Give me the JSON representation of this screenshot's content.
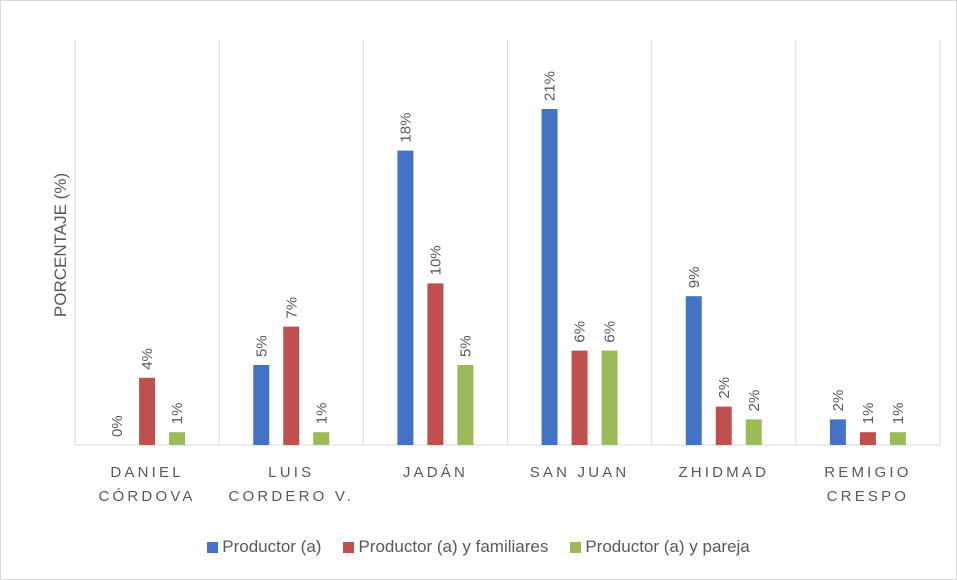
{
  "chart_data": {
    "type": "bar",
    "y_label": "PORCENTAJE (%)",
    "categories": [
      "DANIEL CÓRDOVA",
      "LUIS CORDERO V.",
      "JADÁN",
      "SAN JUAN",
      "ZHIDMAD",
      "REMIGIO CRESPO"
    ],
    "series": [
      {
        "name": "Productor (a)",
        "color": "#4472c4",
        "values": [
          0,
          5.0,
          18.4,
          21.0,
          9.3,
          1.6
        ],
        "value_labels": [
          "0%",
          "5%",
          "18%",
          "21%",
          "9%",
          "2%"
        ]
      },
      {
        "name": "Productor (a) y familiares",
        "color": "#c0504d",
        "values": [
          4.2,
          7.4,
          10.1,
          5.9,
          2.4,
          0.8
        ],
        "value_labels": [
          "4%",
          "7%",
          "10%",
          "6%",
          "2%",
          "1%"
        ]
      },
      {
        "name": "Productor (a) y pareja",
        "color": "#9bbb59",
        "values": [
          0.8,
          0.8,
          5.0,
          5.9,
          1.6,
          0.8
        ],
        "value_labels": [
          "1%",
          "1%",
          "5%",
          "6%",
          "2%",
          "1%"
        ]
      }
    ],
    "ylim": [
      0,
      25
    ],
    "legend": "bottom"
  }
}
